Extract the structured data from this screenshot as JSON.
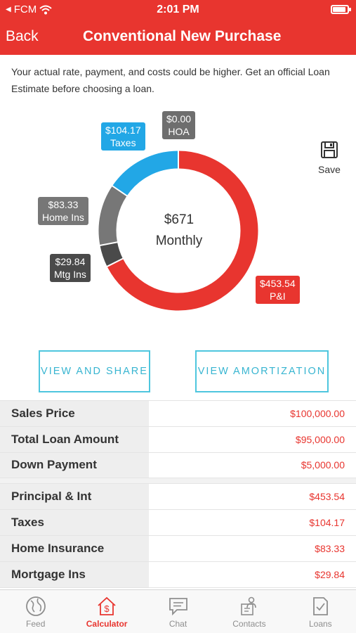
{
  "status_bar": {
    "carrier": "FCM",
    "time": "2:01 PM",
    "battery_level": 0.9
  },
  "nav": {
    "back_label": "Back",
    "title": "Conventional New Purchase"
  },
  "disclaimer": "Your actual rate, payment, and costs could be higher. Get an official Loan Estimate before choosing a loan.",
  "chart_data": {
    "type": "pie",
    "center_amount": "$671",
    "center_label": "Monthly",
    "slices": [
      {
        "name": "P&I",
        "value": 453.54,
        "label": "$453.54",
        "color": "#e8352f"
      },
      {
        "name": "Mtg Ins",
        "value": 29.84,
        "label": "$29.84",
        "color": "#4a4a4a"
      },
      {
        "name": "Home Ins",
        "value": 83.33,
        "label": "$83.33",
        "color": "#777777"
      },
      {
        "name": "Taxes",
        "value": 104.17,
        "label": "$104.17",
        "color": "#22a7e6"
      },
      {
        "name": "HOA",
        "value": 0.0,
        "label": "$0.00",
        "color": "#6e6e6e"
      }
    ]
  },
  "save_label": "Save",
  "buttons": {
    "view_share": "VIEW AND SHARE",
    "view_amortization": "VIEW AMORTIZATION"
  },
  "loan_summary": [
    {
      "label": "Sales Price",
      "value": "$100,000.00"
    },
    {
      "label": "Total Loan Amount",
      "value": "$95,000.00"
    },
    {
      "label": "Down Payment",
      "value": "$5,000.00"
    }
  ],
  "payment_breakdown": [
    {
      "label": "Principal & Int",
      "value": "$453.54"
    },
    {
      "label": "Taxes",
      "value": "$104.17"
    },
    {
      "label": "Home Insurance",
      "value": "$83.33"
    },
    {
      "label": "Mortgage Ins",
      "value": "$29.84"
    }
  ],
  "tabs": [
    {
      "label": "Feed",
      "icon": "globe-icon",
      "active": false
    },
    {
      "label": "Calculator",
      "icon": "calculator-house-icon",
      "active": true
    },
    {
      "label": "Chat",
      "icon": "chat-icon",
      "active": false
    },
    {
      "label": "Contacts",
      "icon": "contacts-icon",
      "active": false
    },
    {
      "label": "Loans",
      "icon": "loans-document-icon",
      "active": false
    }
  ],
  "colors": {
    "brand_red": "#e8352f",
    "accent_blue": "#38b5d1"
  }
}
